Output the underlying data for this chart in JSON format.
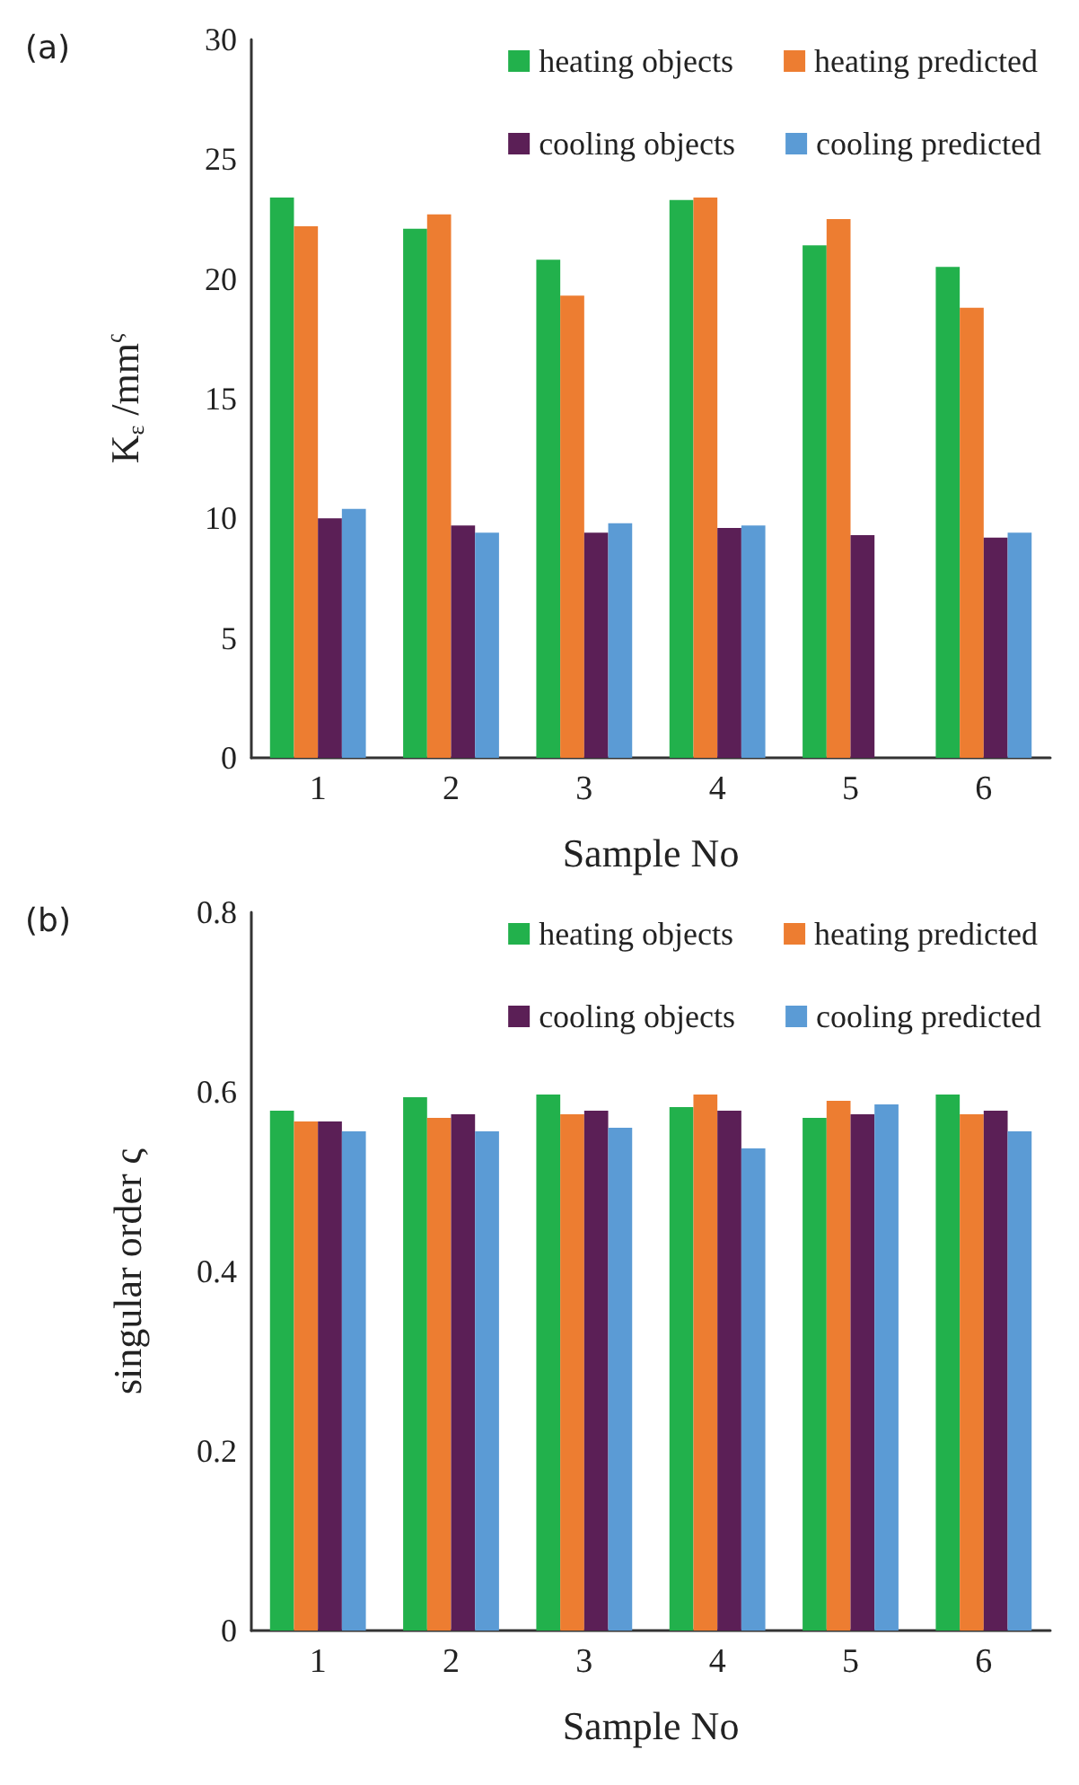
{
  "chart_data": [
    {
      "type": "bar",
      "annotations": [
        "(a)"
      ],
      "xlabel": "Sample No",
      "ylabel": "K$_{ε}$ /mm$^{ς}$",
      "categories": [
        "1",
        "2",
        "3",
        "4",
        "5",
        "6"
      ],
      "ylim": [
        0,
        30
      ],
      "yticks": [
        0,
        5,
        10,
        15,
        20,
        25,
        30
      ],
      "grid": false,
      "legend": "top right",
      "series": [
        {
          "name": "heating objects",
          "color": "#22b14c",
          "values": [
            23.4,
            22.1,
            20.8,
            23.3,
            21.4,
            20.5
          ]
        },
        {
          "name": "heating predicted",
          "color": "#ed7d31",
          "values": [
            22.2,
            22.7,
            19.3,
            23.4,
            22.5,
            18.8
          ]
        },
        {
          "name": "cooling objects",
          "color": "#5b1f56",
          "values": [
            10.0,
            9.7,
            9.4,
            9.6,
            9.3,
            9.2
          ]
        },
        {
          "name": "cooling predicted",
          "color": "#5b9bd5",
          "values": [
            10.4,
            9.4,
            9.8,
            9.7,
            null,
            9.4
          ]
        }
      ]
    },
    {
      "type": "bar",
      "annotations": [
        "(b)"
      ],
      "xlabel": "Sample No",
      "ylabel": "singular order ς",
      "categories": [
        "1",
        "2",
        "3",
        "4",
        "5",
        "6"
      ],
      "ylim": [
        0,
        0.8
      ],
      "yticks": [
        0,
        0.2,
        0.4,
        0.6,
        0.8
      ],
      "grid": false,
      "legend": "top right",
      "series": [
        {
          "name": "heating objects",
          "color": "#22b14c",
          "values": [
            0.579,
            0.594,
            0.597,
            0.583,
            0.571,
            0.597
          ]
        },
        {
          "name": "heating predicted",
          "color": "#ed7d31",
          "values": [
            0.567,
            0.571,
            0.575,
            0.597,
            0.59,
            0.575
          ]
        },
        {
          "name": "cooling objects",
          "color": "#5b1f56",
          "values": [
            0.567,
            0.575,
            0.579,
            0.579,
            0.575,
            0.579
          ]
        },
        {
          "name": "cooling predicted",
          "color": "#5b9bd5",
          "values": [
            0.556,
            0.556,
            0.56,
            0.537,
            0.586,
            0.556
          ]
        }
      ]
    }
  ]
}
